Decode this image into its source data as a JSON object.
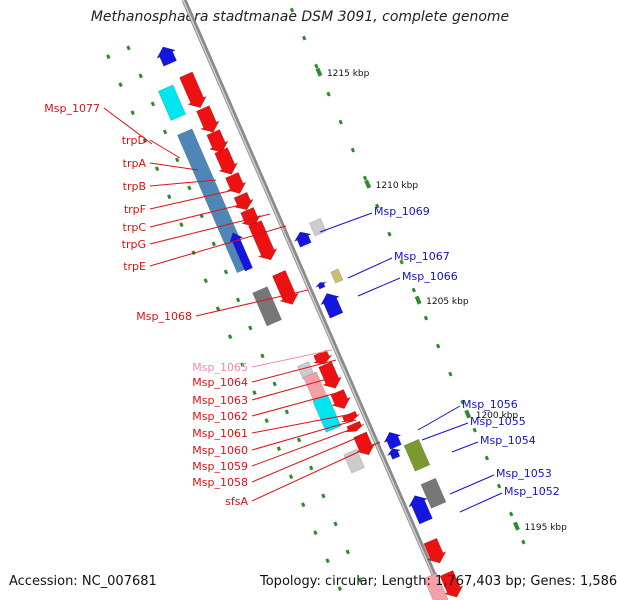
{
  "title": "Methanosphaera stadtmanae DSM 3091, complete genome",
  "footer": {
    "accession_label": "Accession:",
    "accession_value": "NC_007681",
    "topology_label": "Topology:",
    "topology_value": "circular",
    "length_label": "Length:",
    "length_value": "1,767,403 bp",
    "genes_label": "Genes:",
    "genes_value": "1,586"
  },
  "scale": [
    "1215 kbp",
    "1210 kbp",
    "1205 kbp",
    "1200 kbp",
    "1195 kbp"
  ],
  "left_labels": [
    {
      "text": "Msp_1077",
      "color": "#dd1111"
    },
    {
      "text": "trpD",
      "color": "#dd1111"
    },
    {
      "text": "trpA",
      "color": "#dd1111"
    },
    {
      "text": "trpB",
      "color": "#dd1111"
    },
    {
      "text": "trpF",
      "color": "#dd1111"
    },
    {
      "text": "trpC",
      "color": "#dd1111"
    },
    {
      "text": "trpG",
      "color": "#dd1111"
    },
    {
      "text": "trpE",
      "color": "#dd1111"
    },
    {
      "text": "Msp_1068",
      "color": "#dd1111"
    },
    {
      "text": "Msp_1065",
      "color": "#f08aa8"
    },
    {
      "text": "Msp_1064",
      "color": "#dd1111"
    },
    {
      "text": "Msp_1063",
      "color": "#dd1111"
    },
    {
      "text": "Msp_1062",
      "color": "#dd1111"
    },
    {
      "text": "Msp_1061",
      "color": "#dd1111"
    },
    {
      "text": "Msp_1060",
      "color": "#dd1111"
    },
    {
      "text": "Msp_1059",
      "color": "#dd1111"
    },
    {
      "text": "Msp_1058",
      "color": "#dd1111"
    },
    {
      "text": "sfsA",
      "color": "#dd1111"
    }
  ],
  "right_labels": [
    {
      "text": "Msp_1069",
      "color": "#1111cc"
    },
    {
      "text": "Msp_1067",
      "color": "#1111cc"
    },
    {
      "text": "Msp_1066",
      "color": "#1111cc"
    },
    {
      "text": "Msp_1056",
      "color": "#1111cc"
    },
    {
      "text": "Msp_1055",
      "color": "#1111cc"
    },
    {
      "text": "Msp_1054",
      "color": "#1111cc"
    },
    {
      "text": "Msp_1053",
      "color": "#1111cc"
    },
    {
      "text": "Msp_1052",
      "color": "#1111cc"
    }
  ],
  "colors": {
    "forward_gene": "#ee1111",
    "reverse_gene": "#1515e0",
    "cyan_feature": "#00e5ee",
    "steelblue_feature": "#4f86b8",
    "grey_feature": "#777777",
    "lightgrey_feature": "#cccccc",
    "pink_feature": "#f4a0a8",
    "olive_feature": "#7a9a30",
    "khaki_feature": "#c8c070",
    "backbone": "#999999",
    "tick": "#2f8a2f"
  }
}
